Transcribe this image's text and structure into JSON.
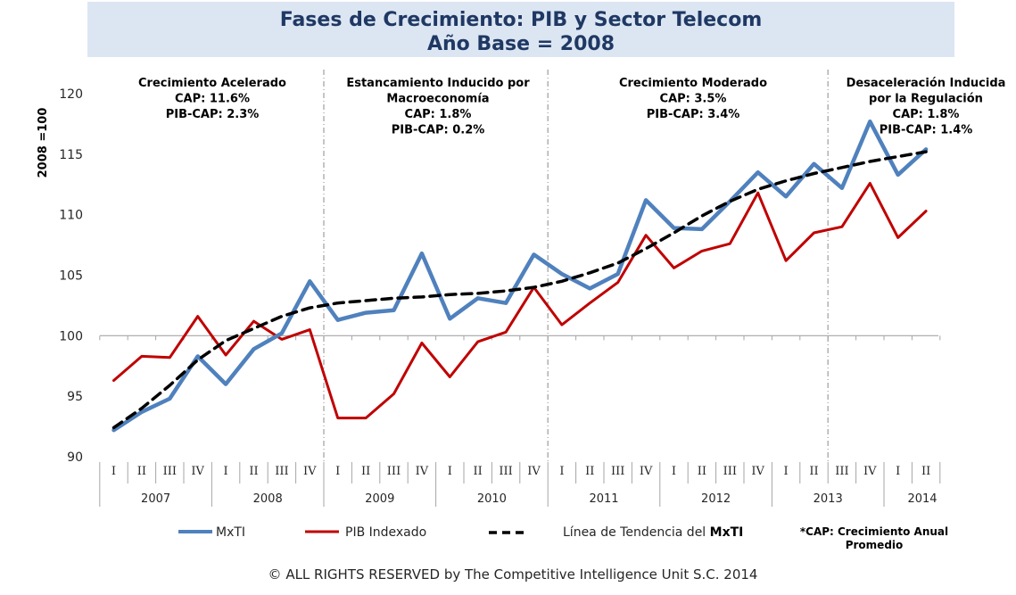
{
  "chart_data": {
    "type": "line",
    "title": [
      "Fases de Crecimiento: PIB y Sector Telecom",
      "Año Base = 2008"
    ],
    "ylabel": "2008 =100",
    "ylim": [
      90,
      120
    ],
    "yticks": [
      "90",
      "95",
      "100",
      "105",
      "110",
      "115",
      "120"
    ],
    "quarters": [
      "I",
      "II",
      "III",
      "IV",
      "I",
      "II",
      "III",
      "IV",
      "I",
      "II",
      "III",
      "IV",
      "I",
      "II",
      "III",
      "IV",
      "I",
      "II",
      "III",
      "IV",
      "I",
      "II",
      "III",
      "IV",
      "I",
      "II",
      "III",
      "IV",
      "I",
      "II"
    ],
    "years": [
      "2007",
      "2008",
      "2009",
      "2010",
      "2011",
      "2012",
      "2013",
      "2014"
    ],
    "series": [
      {
        "name": "MxTI",
        "color": "#4f81bd",
        "values": [
          92.2,
          93.7,
          94.8,
          98.3,
          96.0,
          98.9,
          100.2,
          104.5,
          101.3,
          101.9,
          102.1,
          106.8,
          101.4,
          103.1,
          102.7,
          106.7,
          105.1,
          103.9,
          105.1,
          111.2,
          108.9,
          108.8,
          111.1,
          113.5,
          111.5,
          114.2,
          112.2,
          117.7,
          113.3,
          115.4
        ]
      },
      {
        "name": "PIB Indexado",
        "color": "#c00000",
        "values": [
          96.3,
          98.3,
          98.2,
          101.6,
          98.4,
          101.2,
          99.7,
          100.5,
          93.2,
          93.2,
          95.2,
          99.4,
          96.6,
          99.5,
          100.3,
          104.0,
          100.9,
          102.7,
          104.4,
          108.3,
          105.6,
          107.0,
          107.6,
          111.8,
          106.2,
          108.5,
          109.0,
          112.6,
          108.1,
          110.3
        ]
      },
      {
        "name": "Línea de Tendencia del MxTI",
        "color": "#000000",
        "style": "dashed",
        "values": [
          92.4,
          94.0,
          95.9,
          98.0,
          99.6,
          100.6,
          101.6,
          102.3,
          102.7,
          102.9,
          103.1,
          103.2,
          103.4,
          103.5,
          103.7,
          104.0,
          104.5,
          105.2,
          106.0,
          107.2,
          108.5,
          109.9,
          111.1,
          112.1,
          112.8,
          113.4,
          113.9,
          114.4,
          114.8,
          115.2
        ]
      }
    ],
    "phases": [
      {
        "lines": [
          "Crecimiento Acelerado",
          "CAP: 11.6%",
          "PIB-CAP: 2.3%"
        ]
      },
      {
        "lines": [
          "Estancamiento Inducido por",
          "Macroeconomía",
          "CAP: 1.8%",
          "PIB-CAP: 0.2%"
        ]
      },
      {
        "lines": [
          "Crecimiento Moderado",
          "CAP: 3.5%",
          "PIB-CAP: 3.4%"
        ]
      },
      {
        "lines": [
          "Desaceleración Inducida",
          "por la Regulación",
          "CAP: 1.8%",
          "PIB-CAP: 1.4%"
        ]
      }
    ],
    "legend": {
      "mxti": "MxTI",
      "pib": "PIB Indexado",
      "trend_prefix": "Línea de Tendencia del ",
      "trend_strong": "MxTI",
      "note_line1": "*CAP: Crecimiento Anual",
      "note_line2": "Promedio"
    }
  },
  "footer": {
    "copyright": "© ALL RIGHTS RESERVED by The Competitive Intelligence Unit S.C. 2014"
  }
}
